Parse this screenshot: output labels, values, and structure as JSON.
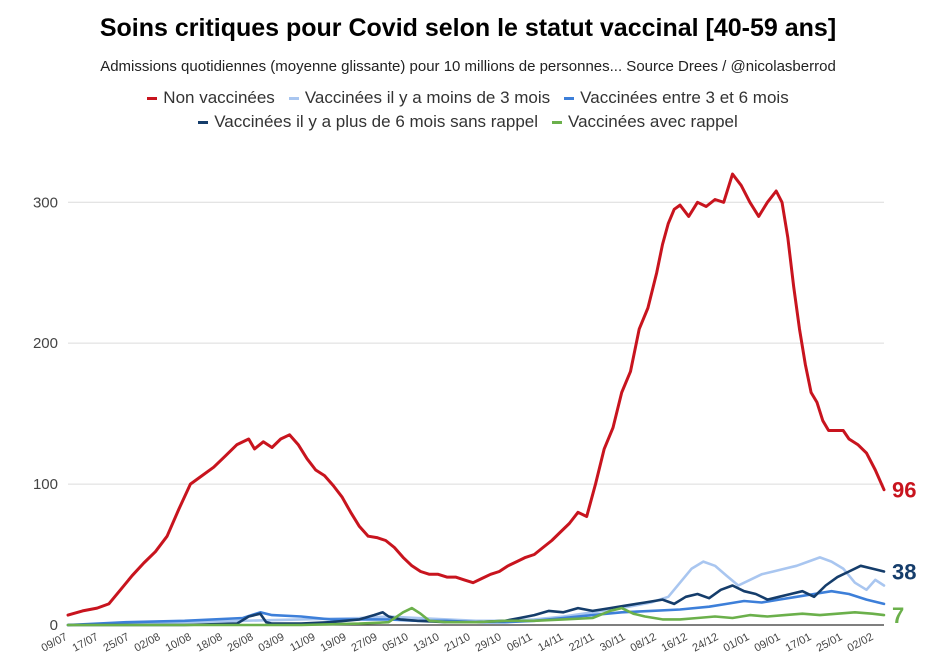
{
  "chart_data": {
    "type": "line",
    "title": "Soins critiques pour Covid selon le statut vaccinal [40-59 ans]",
    "subtitle": "Admissions quotidiennes (moyenne glissante) pour 10 millions de personnes... Source Drees / @nicolasberrod",
    "ylim": [
      0,
      330
    ],
    "y_ticks": [
      0,
      100,
      200,
      300
    ],
    "grid": true,
    "legend_position": "top",
    "x_tick_labels": [
      "09/07",
      "17/07",
      "25/07",
      "02/08",
      "10/08",
      "18/08",
      "26/08",
      "03/09",
      "11/09",
      "19/09",
      "27/09",
      "05/10",
      "13/10",
      "21/10",
      "29/10",
      "06/11",
      "14/11",
      "22/11",
      "30/11",
      "08/12",
      "16/12",
      "24/12",
      "01/01",
      "09/01",
      "17/01",
      "25/01",
      "02/02"
    ],
    "x_index_note": "x values are day index starting 09/07 (0..212)",
    "series": [
      {
        "name": "Non vaccinées",
        "color": "#c8141e",
        "end_label": "96",
        "points": [
          [
            0,
            7
          ],
          [
            5,
            10
          ],
          [
            10,
            12
          ],
          [
            14,
            15
          ],
          [
            18,
            25
          ],
          [
            22,
            35
          ],
          [
            26,
            44
          ],
          [
            30,
            52
          ],
          [
            34,
            63
          ],
          [
            38,
            82
          ],
          [
            42,
            100
          ],
          [
            46,
            106
          ],
          [
            50,
            112
          ],
          [
            54,
            120
          ],
          [
            58,
            128
          ],
          [
            62,
            132
          ],
          [
            64,
            125
          ],
          [
            67,
            130
          ],
          [
            70,
            126
          ],
          [
            73,
            132
          ],
          [
            76,
            135
          ],
          [
            79,
            128
          ],
          [
            82,
            118
          ],
          [
            85,
            110
          ],
          [
            88,
            106
          ],
          [
            91,
            99
          ],
          [
            94,
            91
          ],
          [
            97,
            80
          ],
          [
            100,
            70
          ],
          [
            103,
            63
          ],
          [
            106,
            62
          ],
          [
            109,
            60
          ],
          [
            112,
            55
          ],
          [
            115,
            48
          ],
          [
            118,
            42
          ],
          [
            121,
            38
          ],
          [
            124,
            36
          ],
          [
            127,
            36
          ],
          [
            130,
            34
          ],
          [
            133,
            34
          ],
          [
            136,
            32
          ],
          [
            139,
            30
          ],
          [
            142,
            33
          ],
          [
            145,
            36
          ],
          [
            148,
            38
          ],
          [
            151,
            42
          ],
          [
            154,
            45
          ],
          [
            157,
            48
          ],
          [
            160,
            50
          ],
          [
            163,
            55
          ],
          [
            166,
            60
          ],
          [
            169,
            66
          ],
          [
            172,
            72
          ],
          [
            175,
            80
          ],
          [
            178,
            77
          ],
          [
            181,
            100
          ],
          [
            184,
            125
          ],
          [
            187,
            140
          ],
          [
            190,
            165
          ],
          [
            193,
            180
          ],
          [
            196,
            210
          ],
          [
            199,
            225
          ],
          [
            202,
            250
          ],
          [
            204,
            270
          ],
          [
            206,
            285
          ],
          [
            208,
            295
          ],
          [
            210,
            298
          ],
          [
            213,
            290
          ],
          [
            216,
            300
          ],
          [
            219,
            297
          ],
          [
            222,
            302
          ],
          [
            225,
            300
          ],
          [
            228,
            320
          ],
          [
            231,
            312
          ],
          [
            234,
            300
          ],
          [
            237,
            290
          ],
          [
            240,
            300
          ],
          [
            243,
            308
          ],
          [
            245,
            300
          ],
          [
            247,
            275
          ],
          [
            249,
            240
          ],
          [
            251,
            210
          ],
          [
            253,
            185
          ],
          [
            255,
            165
          ],
          [
            257,
            158
          ],
          [
            259,
            145
          ],
          [
            261,
            138
          ],
          [
            263,
            138
          ],
          [
            266,
            138
          ],
          [
            268,
            132
          ],
          [
            271,
            128
          ],
          [
            274,
            122
          ],
          [
            277,
            110
          ],
          [
            280,
            96
          ]
        ]
      },
      {
        "name": "Vaccinées il y a moins de 3 mois",
        "color": "#a9c6f0",
        "end_label": "",
        "points": [
          [
            0,
            0
          ],
          [
            20,
            1
          ],
          [
            40,
            2
          ],
          [
            60,
            3
          ],
          [
            80,
            4
          ],
          [
            100,
            5
          ],
          [
            110,
            6
          ],
          [
            120,
            5
          ],
          [
            130,
            4
          ],
          [
            140,
            3
          ],
          [
            150,
            3
          ],
          [
            160,
            4
          ],
          [
            170,
            6
          ],
          [
            180,
            9
          ],
          [
            190,
            12
          ],
          [
            200,
            16
          ],
          [
            206,
            20
          ],
          [
            210,
            30
          ],
          [
            214,
            40
          ],
          [
            218,
            45
          ],
          [
            222,
            42
          ],
          [
            226,
            35
          ],
          [
            230,
            28
          ],
          [
            234,
            32
          ],
          [
            238,
            36
          ],
          [
            242,
            38
          ],
          [
            246,
            40
          ],
          [
            250,
            42
          ],
          [
            254,
            45
          ],
          [
            258,
            48
          ],
          [
            262,
            45
          ],
          [
            266,
            40
          ],
          [
            270,
            30
          ],
          [
            274,
            25
          ],
          [
            277,
            32
          ],
          [
            280,
            28
          ]
        ]
      },
      {
        "name": "Vaccinées entre 3 et 6 mois",
        "color": "#3d7fd9",
        "end_label": "",
        "points": [
          [
            0,
            0
          ],
          [
            20,
            2
          ],
          [
            40,
            3
          ],
          [
            60,
            5
          ],
          [
            66,
            9
          ],
          [
            70,
            7
          ],
          [
            80,
            6
          ],
          [
            90,
            4
          ],
          [
            100,
            4
          ],
          [
            110,
            4
          ],
          [
            120,
            3
          ],
          [
            130,
            3
          ],
          [
            140,
            2
          ],
          [
            150,
            2
          ],
          [
            160,
            3
          ],
          [
            170,
            5
          ],
          [
            180,
            7
          ],
          [
            190,
            9
          ],
          [
            200,
            10
          ],
          [
            210,
            11
          ],
          [
            220,
            13
          ],
          [
            226,
            15
          ],
          [
            232,
            17
          ],
          [
            238,
            16
          ],
          [
            244,
            18
          ],
          [
            250,
            20
          ],
          [
            256,
            22
          ],
          [
            262,
            24
          ],
          [
            268,
            22
          ],
          [
            274,
            18
          ],
          [
            280,
            15
          ]
        ]
      },
      {
        "name": "Vaccinées il y a plus de 6 mois sans rappel",
        "color": "#153d6b",
        "end_label": "38",
        "points": [
          [
            0,
            0
          ],
          [
            20,
            0
          ],
          [
            40,
            0
          ],
          [
            58,
            1
          ],
          [
            62,
            6
          ],
          [
            66,
            8
          ],
          [
            68,
            2
          ],
          [
            70,
            1
          ],
          [
            80,
            1
          ],
          [
            90,
            2
          ],
          [
            100,
            4
          ],
          [
            105,
            7
          ],
          [
            108,
            9
          ],
          [
            110,
            6
          ],
          [
            114,
            4
          ],
          [
            120,
            3
          ],
          [
            130,
            2
          ],
          [
            140,
            2
          ],
          [
            150,
            3
          ],
          [
            155,
            5
          ],
          [
            160,
            7
          ],
          [
            165,
            10
          ],
          [
            170,
            9
          ],
          [
            175,
            12
          ],
          [
            180,
            10
          ],
          [
            186,
            12
          ],
          [
            192,
            14
          ],
          [
            198,
            16
          ],
          [
            204,
            18
          ],
          [
            208,
            15
          ],
          [
            212,
            20
          ],
          [
            216,
            22
          ],
          [
            220,
            19
          ],
          [
            224,
            25
          ],
          [
            228,
            28
          ],
          [
            232,
            24
          ],
          [
            236,
            22
          ],
          [
            240,
            18
          ],
          [
            244,
            20
          ],
          [
            248,
            22
          ],
          [
            252,
            24
          ],
          [
            256,
            20
          ],
          [
            260,
            28
          ],
          [
            264,
            34
          ],
          [
            268,
            38
          ],
          [
            272,
            42
          ],
          [
            276,
            40
          ],
          [
            280,
            38
          ]
        ]
      },
      {
        "name": "Vaccinées avec rappel",
        "color": "#6bb04b",
        "end_label": "7",
        "points": [
          [
            0,
            0
          ],
          [
            40,
            0
          ],
          [
            80,
            0
          ],
          [
            100,
            1
          ],
          [
            110,
            2
          ],
          [
            115,
            9
          ],
          [
            118,
            12
          ],
          [
            121,
            8
          ],
          [
            124,
            3
          ],
          [
            130,
            2
          ],
          [
            140,
            2
          ],
          [
            150,
            3
          ],
          [
            160,
            3
          ],
          [
            170,
            4
          ],
          [
            180,
            5
          ],
          [
            186,
            10
          ],
          [
            190,
            12
          ],
          [
            194,
            8
          ],
          [
            198,
            6
          ],
          [
            204,
            4
          ],
          [
            210,
            4
          ],
          [
            216,
            5
          ],
          [
            222,
            6
          ],
          [
            228,
            5
          ],
          [
            234,
            7
          ],
          [
            240,
            6
          ],
          [
            246,
            7
          ],
          [
            252,
            8
          ],
          [
            258,
            7
          ],
          [
            264,
            8
          ],
          [
            270,
            9
          ],
          [
            276,
            8
          ],
          [
            280,
            7
          ]
        ]
      }
    ]
  }
}
